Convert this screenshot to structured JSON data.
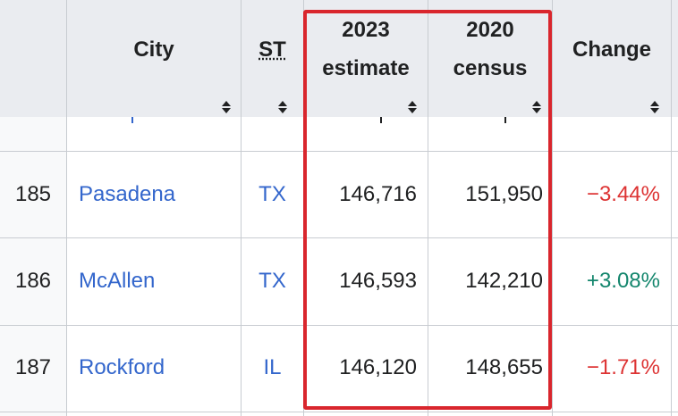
{
  "table": {
    "headers": {
      "city": "City",
      "st": "ST",
      "estimate_line1": "2023",
      "estimate_line2": "estimate",
      "census_line1": "2020",
      "census_line2": "census",
      "change": "Change"
    },
    "rows": [
      {
        "rank": "185",
        "city": "Pasadena",
        "st": "TX",
        "estimate": "146,716",
        "census": "151,950",
        "change": "−3.44%"
      },
      {
        "rank": "186",
        "city": "McAllen",
        "st": "TX",
        "estimate": "146,593",
        "census": "142,210",
        "change": "+3.08%"
      },
      {
        "rank": "187",
        "city": "Rockford",
        "st": "IL",
        "estimate": "146,120",
        "census": "148,655",
        "change": "−1.71%"
      }
    ]
  },
  "colors": {
    "highlight": "#d9262d",
    "link": "#3366cc",
    "negative": "#d33333",
    "positive": "#14866d"
  }
}
